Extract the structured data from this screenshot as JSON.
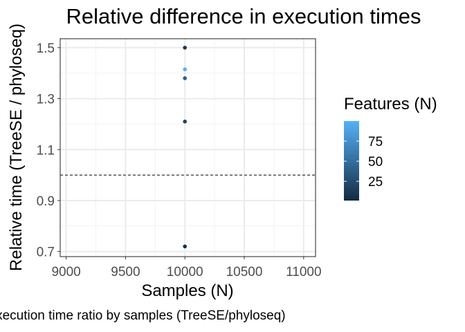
{
  "chart_data": {
    "type": "scatter",
    "title": "Relative difference in execution times",
    "xlabel": "Samples (N)",
    "ylabel": "Relative time (TreeSE / phyloseq)",
    "caption": "Execution time ratio by samples (TreeSE/phyloseq)",
    "xlim": [
      8950,
      11100
    ],
    "ylim": [
      0.68,
      1.535
    ],
    "x_ticks": [
      9000,
      9500,
      10000,
      10500,
      11000
    ],
    "x_tick_labels": [
      "9000",
      "9500",
      "10000",
      "10500",
      "11000"
    ],
    "y_ticks": [
      0.7,
      0.9,
      1.1,
      1.3,
      1.5
    ],
    "y_tick_labels": [
      "0.7",
      "0.9",
      "1.1",
      "1.3",
      "1.5"
    ],
    "reference_line": {
      "y": 1.0,
      "style": "dashed"
    },
    "grid": true,
    "points": [
      {
        "x": 10000,
        "y": 1.5,
        "features": 10
      },
      {
        "x": 10000,
        "y": 1.415,
        "features": 100
      },
      {
        "x": 10000,
        "y": 1.38,
        "features": 40
      },
      {
        "x": 10000,
        "y": 1.21,
        "features": 20
      },
      {
        "x": 10000,
        "y": 0.72,
        "features": 5
      }
    ],
    "legend": {
      "title": "Features (N)",
      "position": "right",
      "min": 1,
      "max": 100,
      "breaks": [
        75,
        50,
        25
      ],
      "break_labels": [
        "75",
        "50",
        "25"
      ],
      "low_color": "#132B43",
      "high_color": "#56B1F7"
    }
  }
}
